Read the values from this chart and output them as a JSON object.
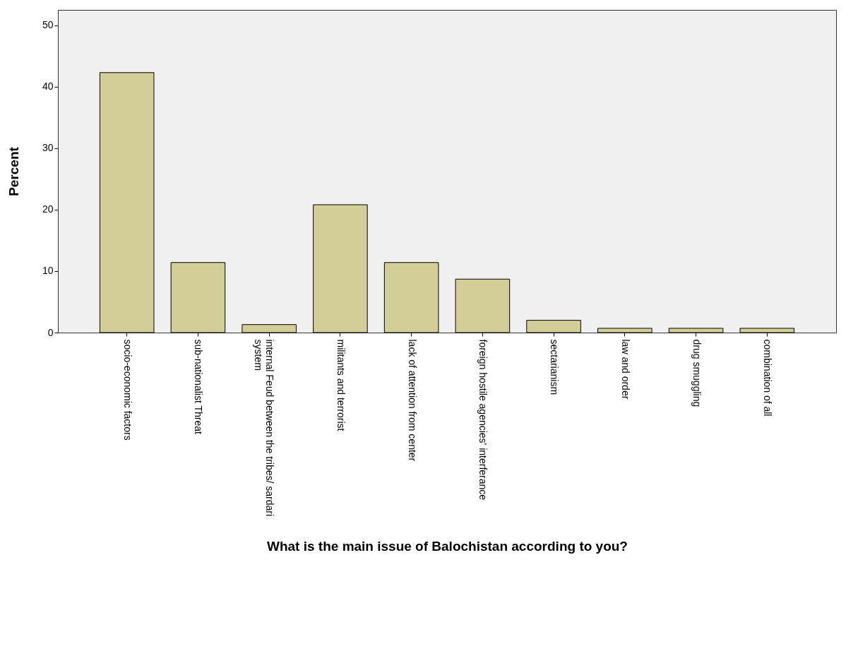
{
  "chart_data": {
    "type": "bar",
    "xlabel": "What is the main issue of Balochistan according to you?",
    "ylabel": "Percent",
    "categories": [
      "socio-economic factors",
      "sub-nationalist Threat",
      "internal Feud between the tribes/ sardari system",
      "militants and terrorist",
      "lack of attention from center",
      "foreign hostile agencies' interferance",
      "sectarianism",
      "law and order",
      "drug smuggling",
      "combination of all"
    ],
    "values": [
      42.3,
      11.4,
      1.3,
      20.8,
      11.4,
      8.7,
      2.0,
      0.7,
      0.7,
      0.7
    ],
    "color": "#d3ce98",
    "ylim": [
      0,
      52.5
    ],
    "yticks": [
      0,
      10,
      20,
      30,
      40,
      50
    ],
    "grid": false
  }
}
